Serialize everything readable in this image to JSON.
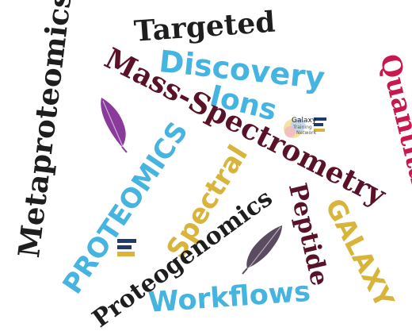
{
  "colors": {
    "black": "#1e1e1e",
    "sky_blue": "#46b4e1",
    "maroon": "#5a1228",
    "crimson": "#c8184e",
    "gold": "#d8b53a",
    "purple": "#8a3a9a",
    "slate_purple": "#5a4b61",
    "navy": "#1f3a6e"
  },
  "words": {
    "targeted": "Targeted",
    "metaproteomics": "Metaproteomics",
    "discovery": "Discovery",
    "mass_spectrometry": "Mass-Spectrometry",
    "ions": "Ions",
    "quantitation": "Quantitation",
    "proteomics": "PROTEOMICS",
    "spectral": "Spectral",
    "proteogenomics": "Proteogenomics",
    "peptide": "Peptide",
    "galaxy_word": "GALAXY",
    "workflows": "Workflows"
  },
  "galaxy_logo": {
    "line1": "Galaxy",
    "line2": "Training",
    "line3": "Network"
  },
  "icons": [
    "feather-icon-purple",
    "feather-icon-slate",
    "galaxy-logo",
    "galaxy-bars-icon"
  ]
}
